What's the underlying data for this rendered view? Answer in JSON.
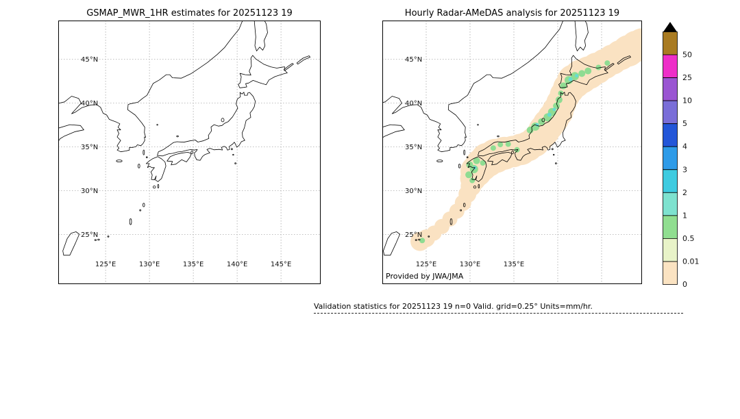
{
  "left_panel": {
    "title": "GSMAP_MWR_1HR estimates for 20251123 19",
    "lat_labels": [
      "45°N",
      "40°N",
      "35°N",
      "30°N",
      "25°N"
    ],
    "lon_labels": [
      "125°E",
      "130°E",
      "135°E",
      "140°E",
      "145°E"
    ]
  },
  "right_panel": {
    "title": "Hourly Radar-AMeDAS analysis for 20251123 19",
    "lat_labels": [
      "45°N",
      "40°N",
      "35°N",
      "30°N",
      "25°N"
    ],
    "lon_labels": [
      "125°E",
      "130°E",
      "135°E"
    ],
    "credit": "Provided by JWA/JMA"
  },
  "colorbar": {
    "units": "mm/hr",
    "levels": [
      {
        "label": "50",
        "color": "#A97B22"
      },
      {
        "label": "25",
        "color": "#EE2EC8"
      },
      {
        "label": "10",
        "color": "#9A55D2"
      },
      {
        "label": "5",
        "color": "#7A6ED8"
      },
      {
        "label": "4",
        "color": "#2356D8"
      },
      {
        "label": "3",
        "color": "#2E9BE8"
      },
      {
        "label": "2",
        "color": "#3ECBE0"
      },
      {
        "label": "1",
        "color": "#7EE2CF"
      },
      {
        "label": "0.5",
        "color": "#90DE90"
      },
      {
        "label": "0.01",
        "color": "#E8F3C8"
      },
      {
        "label": "0",
        "color": "#FBE3C2"
      }
    ]
  },
  "overlay_colors": {
    "band": "#FAE2C2",
    "light_rain": "#8FDC92",
    "moderate_rain": "#66DCD0"
  },
  "caption": "Validation statistics for 20251123 19  n=0 Valid. grid=0.25° Units=mm/hr."
}
